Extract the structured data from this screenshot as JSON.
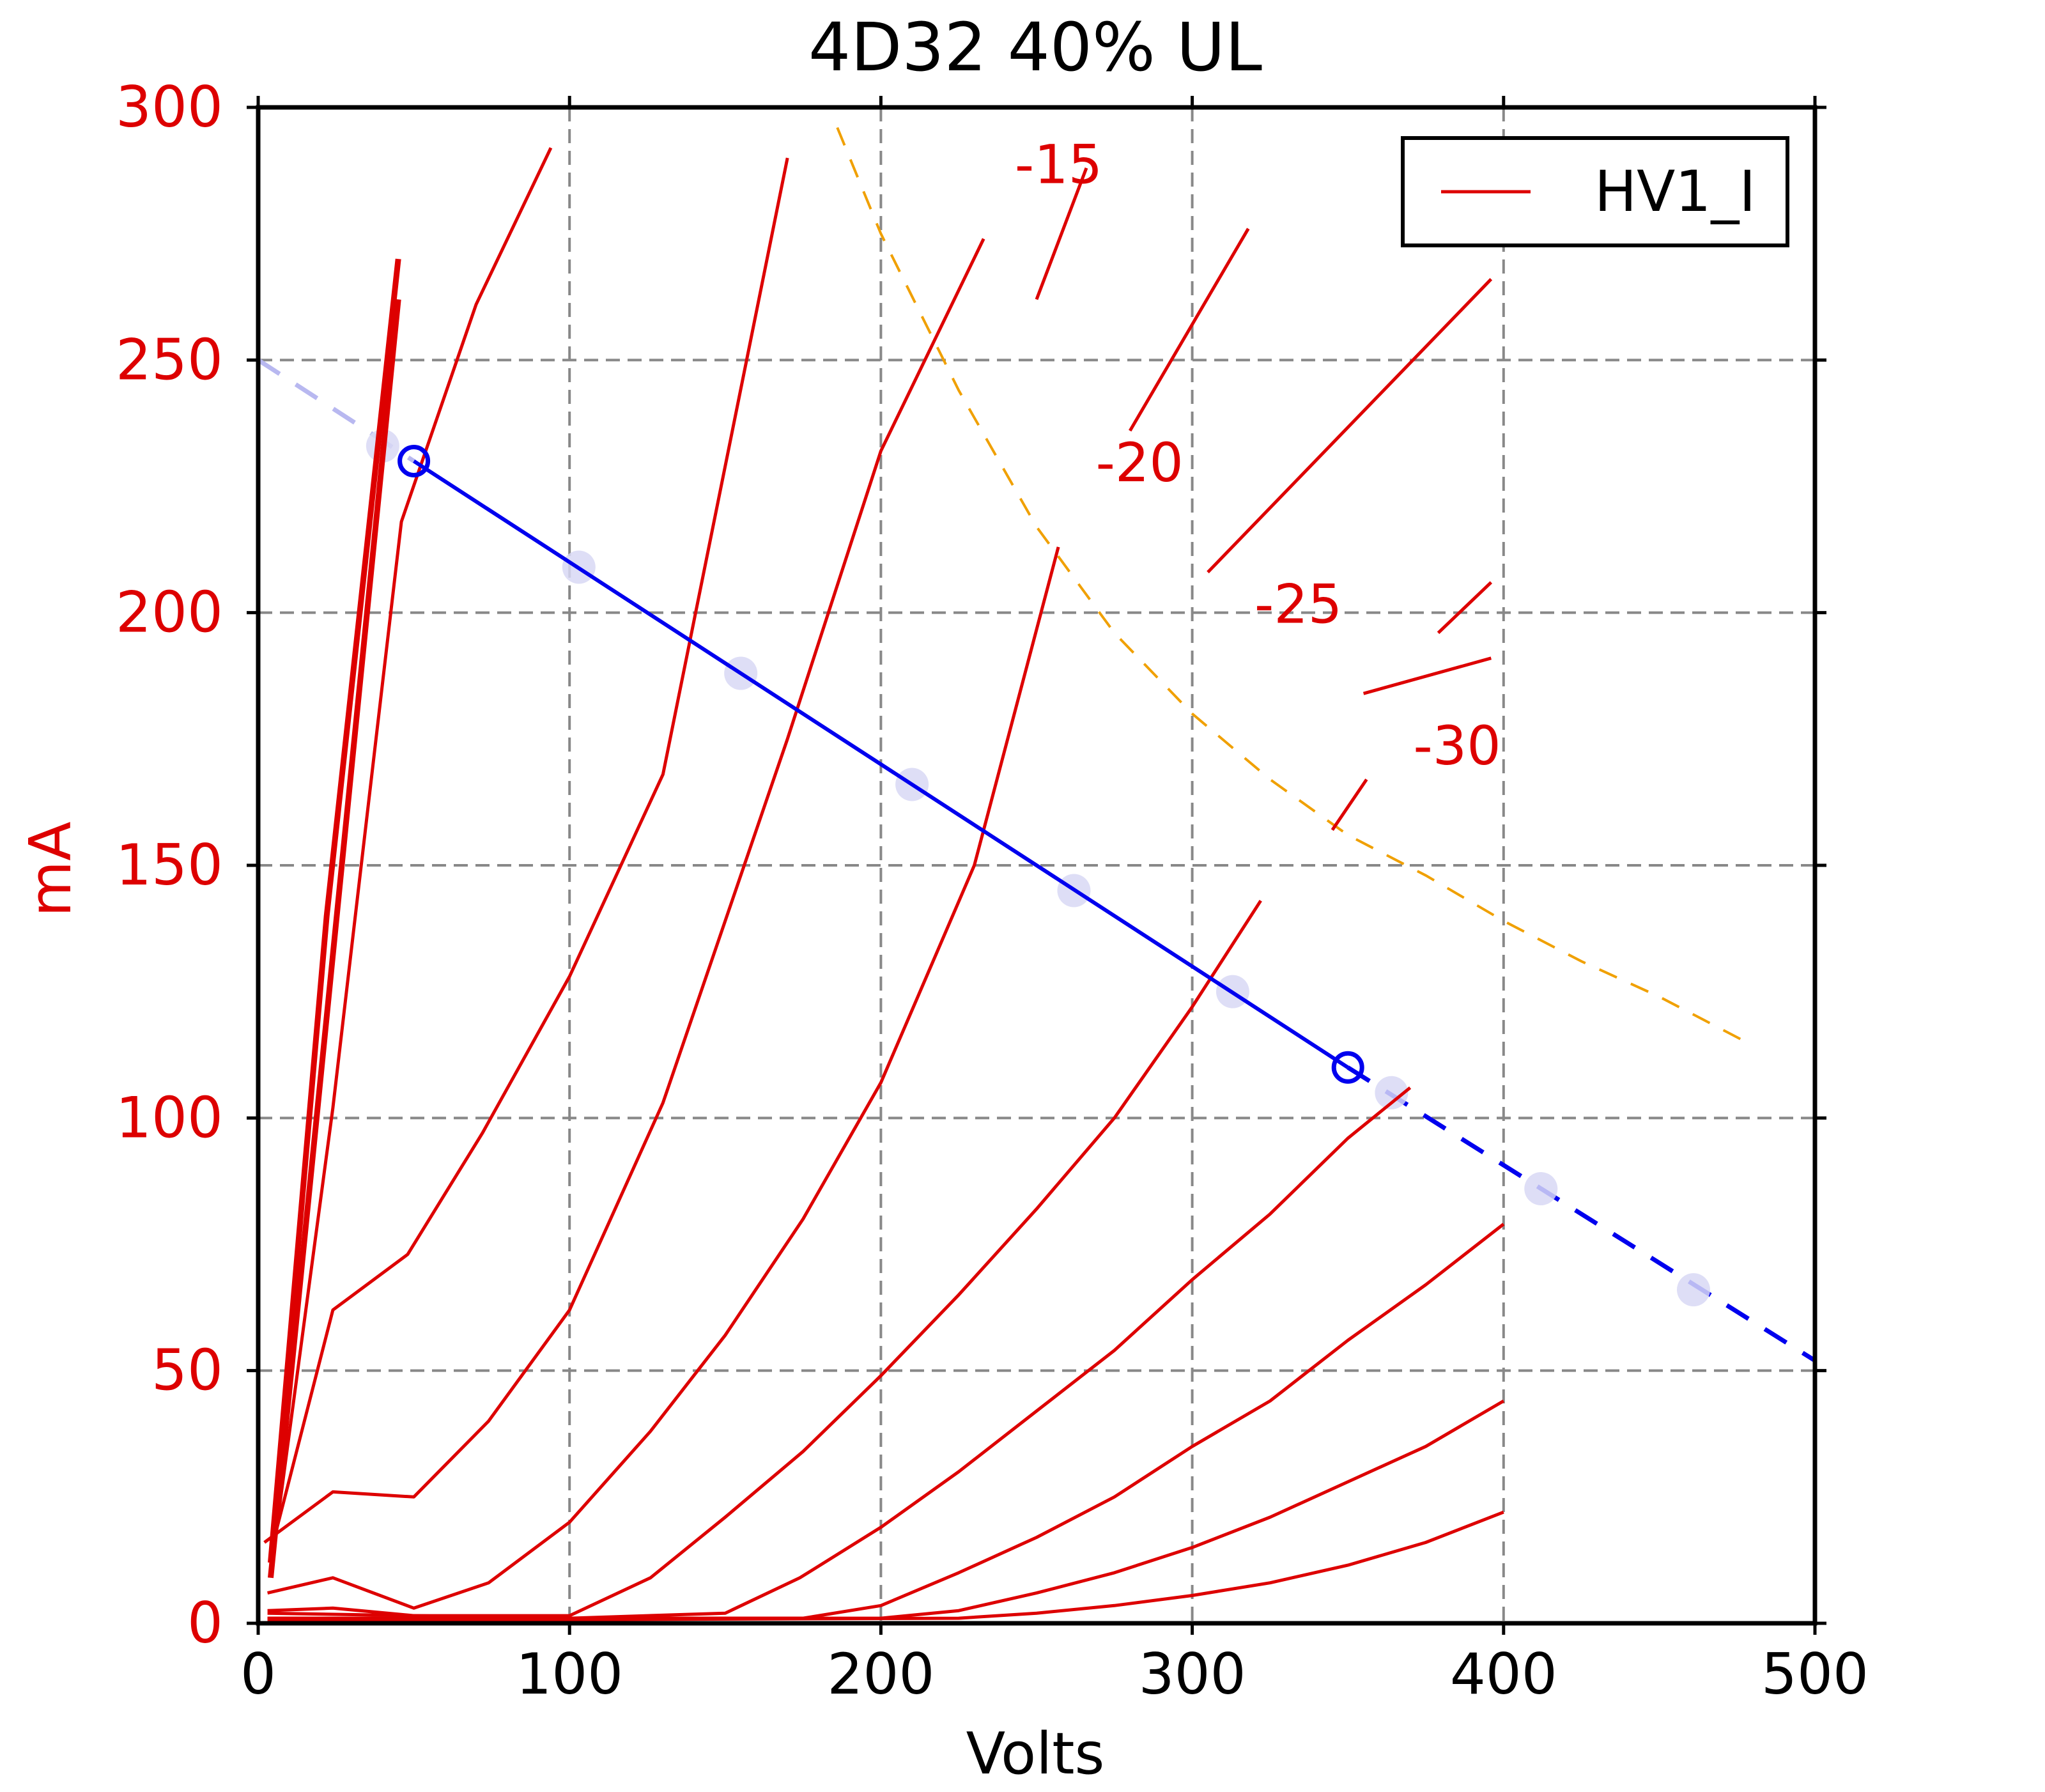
{
  "chart_data": {
    "type": "line",
    "title": "4D32 40% UL",
    "xlabel": "Volts",
    "ylabel": "mA",
    "xlim": [
      0,
      500
    ],
    "ylim": [
      0,
      300
    ],
    "grid": true,
    "legend_placement": "top-right",
    "colors": {
      "curves": "#dd0000",
      "axis_text_y": "#dd0000",
      "load_line": "#0000ee",
      "load_line_fade": "#b8b8f0",
      "dissipation": "#f0a000",
      "grid": "#888888",
      "operating_points": "#d8d8f4"
    },
    "x_ticks": [
      0,
      100,
      200,
      300,
      400,
      500
    ],
    "y_ticks": [
      0,
      50,
      100,
      150,
      200,
      250,
      300
    ],
    "legend": [
      {
        "label": "HV1_I",
        "color": "#dd0000"
      }
    ],
    "curve_labels": [
      {
        "text": "-15",
        "x": 243,
        "y": 285
      },
      {
        "text": "-20",
        "x": 269,
        "y": 226
      },
      {
        "text": "-25",
        "x": 320,
        "y": 198
      },
      {
        "text": "-30",
        "x": 371,
        "y": 170
      }
    ],
    "series": [
      {
        "points": [
          [
            4,
            12
          ],
          [
            22,
            140
          ],
          [
            45,
            270
          ]
        ],
        "thick": true
      },
      {
        "points": [
          [
            4,
            9
          ],
          [
            22,
            120
          ],
          [
            45,
            262
          ]
        ],
        "thick": true
      },
      {
        "points": [
          [
            4,
            10
          ],
          [
            24,
            102
          ],
          [
            46,
            218
          ],
          [
            70,
            261
          ],
          [
            94,
            292
          ]
        ]
      },
      {
        "points": [
          [
            4,
            14
          ],
          [
            24,
            62
          ],
          [
            48,
            73
          ],
          [
            72,
            97
          ],
          [
            100,
            128
          ],
          [
            130,
            168
          ],
          [
            170,
            290
          ]
        ]
      },
      {
        "points": [
          [
            2,
            16
          ],
          [
            24,
            26
          ],
          [
            50,
            25
          ],
          [
            74,
            40
          ],
          [
            100,
            62
          ],
          [
            130,
            103
          ],
          [
            170,
            175
          ],
          [
            200,
            232
          ],
          [
            233,
            274
          ]
        ]
      },
      {
        "points": [
          [
            3,
            6
          ],
          [
            24,
            9
          ],
          [
            50,
            3
          ],
          [
            74,
            8
          ],
          [
            100,
            20
          ],
          [
            126,
            38
          ],
          [
            150,
            57
          ],
          [
            175,
            80
          ],
          [
            200,
            107
          ],
          [
            230,
            150
          ],
          [
            257,
            213
          ]
        ]
      },
      {
        "points": [
          [
            3,
            2.5
          ],
          [
            24,
            3
          ],
          [
            50,
            1.5
          ],
          [
            100,
            1.5
          ],
          [
            126,
            9
          ],
          [
            150,
            21
          ],
          [
            175,
            34
          ],
          [
            200,
            49
          ],
          [
            225,
            65
          ],
          [
            250,
            82
          ],
          [
            275,
            100
          ],
          [
            300,
            122
          ],
          [
            322,
            143
          ]
        ]
      },
      {
        "points": [
          [
            3,
            2
          ],
          [
            100,
            1
          ],
          [
            150,
            2
          ],
          [
            174,
            9
          ],
          [
            200,
            19
          ],
          [
            225,
            30
          ],
          [
            250,
            42
          ],
          [
            275,
            54
          ],
          [
            300,
            68
          ],
          [
            325,
            81
          ],
          [
            350,
            96
          ],
          [
            370,
            106
          ]
        ]
      },
      {
        "points": [
          [
            3,
            1
          ],
          [
            150,
            1
          ],
          [
            175,
            1
          ],
          [
            200,
            3.5
          ],
          [
            225,
            10
          ],
          [
            250,
            17
          ],
          [
            275,
            25
          ],
          [
            300,
            35
          ],
          [
            325,
            44
          ],
          [
            350,
            56
          ],
          [
            375,
            67
          ],
          [
            400,
            79
          ]
        ]
      },
      {
        "points": [
          [
            3,
            1
          ],
          [
            200,
            1
          ],
          [
            225,
            2.5
          ],
          [
            250,
            6
          ],
          [
            275,
            10
          ],
          [
            300,
            15
          ],
          [
            325,
            21
          ],
          [
            350,
            28
          ],
          [
            375,
            35
          ],
          [
            400,
            44
          ]
        ]
      },
      {
        "points": [
          [
            3,
            0.5
          ],
          [
            225,
            1
          ],
          [
            250,
            2
          ],
          [
            275,
            3.5
          ],
          [
            300,
            5.5
          ],
          [
            325,
            8
          ],
          [
            350,
            11.5
          ],
          [
            375,
            16
          ],
          [
            400,
            22
          ]
        ]
      }
    ],
    "segments": [
      {
        "points": [
          [
            250,
            262
          ],
          [
            266,
            288
          ]
        ]
      },
      {
        "points": [
          [
            280,
            236
          ],
          [
            318,
            276
          ]
        ]
      },
      {
        "points": [
          [
            305,
            208
          ],
          [
            396,
            266
          ]
        ]
      },
      {
        "points": [
          [
            355,
            184
          ],
          [
            396,
            191
          ]
        ]
      },
      {
        "points": [
          [
            379,
            196
          ],
          [
            396,
            206
          ]
        ]
      },
      {
        "points": [
          [
            345,
            157
          ],
          [
            356,
            167
          ]
        ]
      }
    ],
    "dissipation_line": [
      [
        186,
        296
      ],
      [
        200,
        275
      ],
      [
        225,
        244
      ],
      [
        250,
        217
      ],
      [
        275,
        196
      ],
      [
        300,
        180
      ],
      [
        325,
        167
      ],
      [
        350,
        156
      ],
      [
        375,
        148
      ],
      [
        400,
        139
      ],
      [
        425,
        131
      ],
      [
        450,
        124
      ],
      [
        478,
        115
      ]
    ],
    "load_line": [
      [
        50,
        230
      ],
      [
        350,
        110
      ]
    ],
    "load_line_dashed_right": [
      [
        350,
        110
      ],
      [
        500,
        52
      ]
    ],
    "load_line_dashed_left": [
      [
        0,
        250
      ],
      [
        50,
        230
      ]
    ],
    "operating_point_markers": [
      [
        50,
        230
      ],
      [
        350,
        110
      ]
    ],
    "operating_points": [
      [
        40,
        233
      ],
      [
        103,
        209
      ],
      [
        155,
        188
      ],
      [
        210,
        166
      ],
      [
        262,
        145
      ],
      [
        313,
        125
      ],
      [
        364,
        105
      ],
      [
        412,
        86
      ],
      [
        461,
        66
      ]
    ]
  }
}
